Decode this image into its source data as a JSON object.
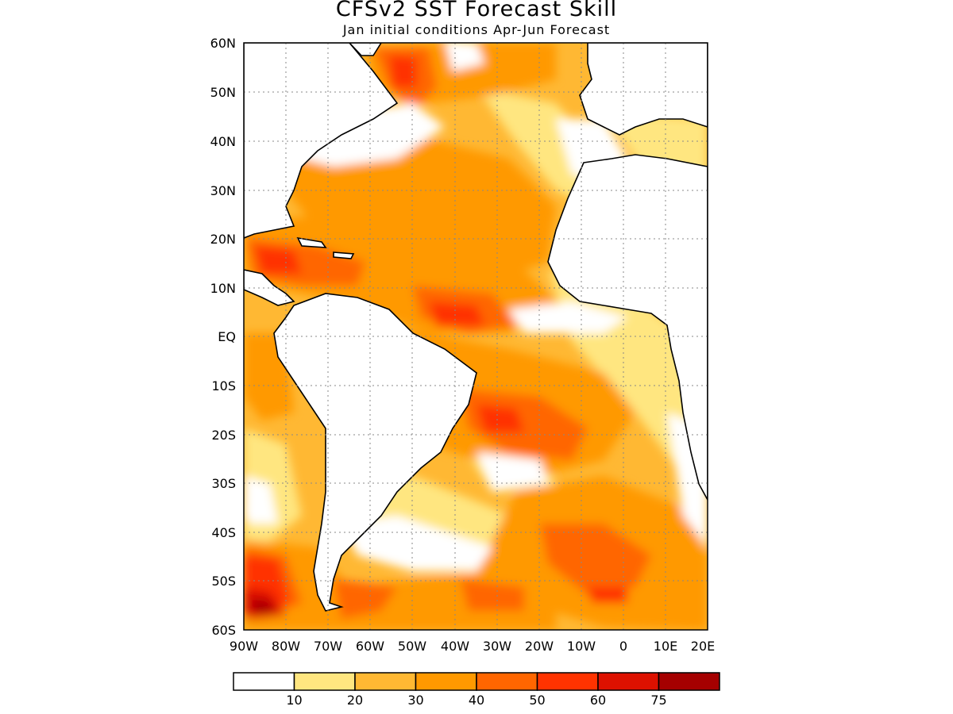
{
  "title": "CFSv2 SST Forecast Skill",
  "subtitle": "Jan initial conditions  Apr-Jun Forecast",
  "map": {
    "lon_range": [
      -90,
      20
    ],
    "lat_range": [
      -60,
      60
    ],
    "grid": "dotted",
    "lat_labels": [
      "60N",
      "50N",
      "40N",
      "30N",
      "20N",
      "10N",
      "EQ",
      "10S",
      "20S",
      "30S",
      "40S",
      "50S",
      "60S"
    ],
    "lon_labels": [
      "90W",
      "80W",
      "70W",
      "60W",
      "50W",
      "40W",
      "30W",
      "20W",
      "10W",
      "0",
      "10E",
      "20E"
    ]
  },
  "legend": {
    "bins": [
      {
        "color": "#ffffff",
        "label": ""
      },
      {
        "color": "#ffe680",
        "label": "10"
      },
      {
        "color": "#ffb833",
        "label": "20"
      },
      {
        "color": "#ff9900",
        "label": "30"
      },
      {
        "color": "#ff6600",
        "label": "40"
      },
      {
        "color": "#ff3300",
        "label": "50"
      },
      {
        "color": "#dd1100",
        "label": "60"
      },
      {
        "color": "#a50000",
        "label": "75"
      }
    ]
  }
}
